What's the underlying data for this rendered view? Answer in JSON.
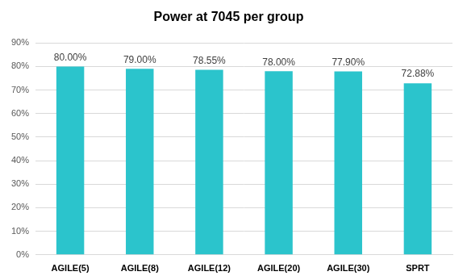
{
  "chart_data": {
    "type": "bar",
    "title": "Power at 7045 per group",
    "categories": [
      "AGILE(5)",
      "AGILE(8)",
      "AGILE(12)",
      "AGILE(20)",
      "AGILE(30)",
      "SPRT"
    ],
    "values": [
      80,
      79,
      78.55,
      78,
      77.9,
      72.88
    ],
    "value_labels": [
      "80.00%",
      "79.00%",
      "78.55%",
      "78.00%",
      "77.90%",
      "72.88%"
    ],
    "color": "#2bc4cc",
    "ylim": [
      0,
      90
    ],
    "yticks": [
      {
        "value": 0,
        "label": "0%"
      },
      {
        "value": 10,
        "label": "10%"
      },
      {
        "value": 20,
        "label": "20%"
      },
      {
        "value": 30,
        "label": "30%"
      },
      {
        "value": 40,
        "label": "40%"
      },
      {
        "value": 50,
        "label": "50%"
      },
      {
        "value": 60,
        "label": "60%"
      },
      {
        "value": 70,
        "label": "70%"
      },
      {
        "value": 80,
        "label": "80%"
      },
      {
        "value": 90,
        "label": "90%"
      }
    ],
    "grid": true,
    "data_labels": true
  }
}
